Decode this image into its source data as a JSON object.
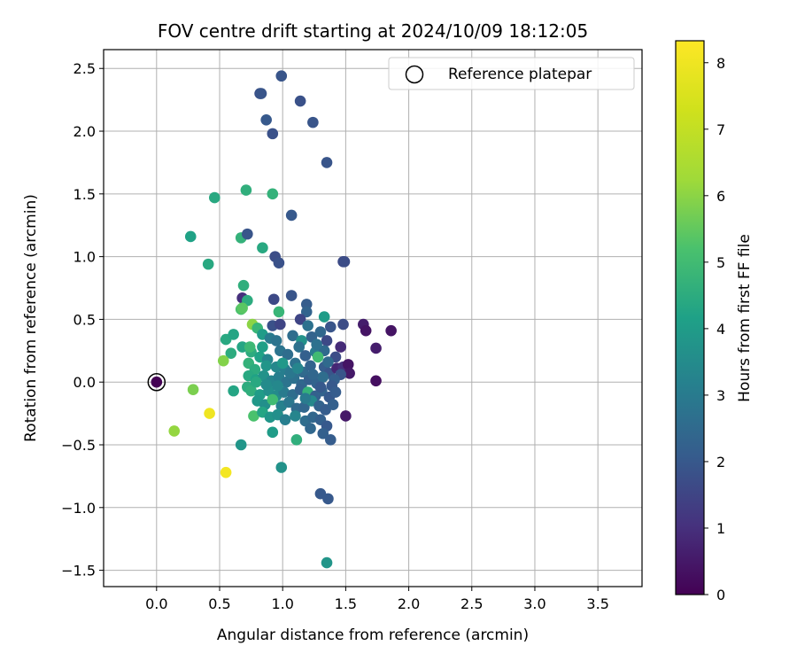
{
  "chart_data": {
    "type": "scatter",
    "title": "FOV centre drift starting at 2024/10/09 18:12:05",
    "xlabel": "Angular distance from reference (arcmin)",
    "ylabel": "Rotation from reference (arcmin)",
    "xlim": [
      -0.42,
      3.85
    ],
    "ylim": [
      -1.63,
      2.65
    ],
    "xticks": [
      0.0,
      0.5,
      1.0,
      1.5,
      2.0,
      2.5,
      3.0,
      3.5
    ],
    "xtick_labels": [
      "0.0",
      "0.5",
      "1.0",
      "1.5",
      "2.0",
      "2.5",
      "3.0",
      "3.5"
    ],
    "yticks": [
      -1.5,
      -1.0,
      -0.5,
      0.0,
      0.5,
      1.0,
      1.5,
      2.0,
      2.5
    ],
    "ytick_labels": [
      "−1.5",
      "−1.0",
      "−0.5",
      "0.0",
      "0.5",
      "1.0",
      "1.5",
      "2.0",
      "2.5"
    ],
    "grid": true,
    "legend": {
      "position": "top-right",
      "entries": [
        "Reference platepar"
      ]
    },
    "reference_point": {
      "x": 0.0,
      "y": 0.0,
      "c": 0.0
    },
    "colorbar": {
      "label": "Hours from first FF file",
      "colormap": "viridis",
      "range": [
        0,
        8.33
      ],
      "ticks": [
        0,
        1,
        2,
        3,
        4,
        5,
        6,
        7,
        8
      ],
      "tick_labels": [
        "0",
        "1",
        "2",
        "3",
        "4",
        "5",
        "6",
        "7",
        "8"
      ]
    },
    "points": [
      {
        "x": 0.99,
        "y": 2.44,
        "c": 1.9
      },
      {
        "x": 0.82,
        "y": 2.3,
        "c": 1.8
      },
      {
        "x": 0.83,
        "y": 2.3,
        "c": 1.9
      },
      {
        "x": 1.14,
        "y": 2.24,
        "c": 1.8
      },
      {
        "x": 0.87,
        "y": 2.09,
        "c": 2.0
      },
      {
        "x": 1.24,
        "y": 2.07,
        "c": 1.9
      },
      {
        "x": 0.92,
        "y": 1.98,
        "c": 1.8
      },
      {
        "x": 1.35,
        "y": 1.75,
        "c": 1.9
      },
      {
        "x": 0.46,
        "y": 1.47,
        "c": 4.4
      },
      {
        "x": 0.71,
        "y": 1.53,
        "c": 4.6
      },
      {
        "x": 0.92,
        "y": 1.5,
        "c": 4.7
      },
      {
        "x": 1.07,
        "y": 1.33,
        "c": 2.0
      },
      {
        "x": 0.27,
        "y": 1.16,
        "c": 4.2
      },
      {
        "x": 0.67,
        "y": 1.15,
        "c": 4.7
      },
      {
        "x": 0.72,
        "y": 1.18,
        "c": 1.9
      },
      {
        "x": 0.84,
        "y": 1.07,
        "c": 4.4
      },
      {
        "x": 0.94,
        "y": 1.0,
        "c": 1.7
      },
      {
        "x": 0.97,
        "y": 0.95,
        "c": 1.8
      },
      {
        "x": 1.48,
        "y": 0.96,
        "c": 1.6
      },
      {
        "x": 1.49,
        "y": 0.96,
        "c": 1.7
      },
      {
        "x": 0.41,
        "y": 0.94,
        "c": 4.4
      },
      {
        "x": 0.69,
        "y": 0.77,
        "c": 4.6
      },
      {
        "x": 0.68,
        "y": 0.67,
        "c": 1.0
      },
      {
        "x": 0.72,
        "y": 0.65,
        "c": 4.5
      },
      {
        "x": 0.93,
        "y": 0.66,
        "c": 1.6
      },
      {
        "x": 1.07,
        "y": 0.69,
        "c": 1.9
      },
      {
        "x": 1.19,
        "y": 0.62,
        "c": 2.1
      },
      {
        "x": 0.67,
        "y": 0.58,
        "c": 5.2
      },
      {
        "x": 0.68,
        "y": 0.59,
        "c": 5.4
      },
      {
        "x": 0.97,
        "y": 0.56,
        "c": 4.8
      },
      {
        "x": 1.19,
        "y": 0.56,
        "c": 2.3
      },
      {
        "x": 1.33,
        "y": 0.52,
        "c": 4.0
      },
      {
        "x": 1.64,
        "y": 0.46,
        "c": 0.6
      },
      {
        "x": 1.66,
        "y": 0.41,
        "c": 0.4
      },
      {
        "x": 1.86,
        "y": 0.41,
        "c": 0.4
      },
      {
        "x": 1.48,
        "y": 0.46,
        "c": 1.7
      },
      {
        "x": 1.74,
        "y": 0.27,
        "c": 0.6
      },
      {
        "x": 1.46,
        "y": 0.28,
        "c": 0.9
      },
      {
        "x": 0.76,
        "y": 0.46,
        "c": 6.0
      },
      {
        "x": 0.8,
        "y": 0.43,
        "c": 4.8
      },
      {
        "x": 0.92,
        "y": 0.45,
        "c": 1.8
      },
      {
        "x": 0.98,
        "y": 0.46,
        "c": 1.5
      },
      {
        "x": 1.14,
        "y": 0.5,
        "c": 1.5
      },
      {
        "x": 1.2,
        "y": 0.45,
        "c": 2.7
      },
      {
        "x": 1.38,
        "y": 0.44,
        "c": 1.9
      },
      {
        "x": 0.55,
        "y": 0.34,
        "c": 4.4
      },
      {
        "x": 0.61,
        "y": 0.38,
        "c": 4.3
      },
      {
        "x": 0.68,
        "y": 0.28,
        "c": 4.3
      },
      {
        "x": 0.84,
        "y": 0.38,
        "c": 4.0
      },
      {
        "x": 0.9,
        "y": 0.35,
        "c": 3.0
      },
      {
        "x": 0.95,
        "y": 0.33,
        "c": 2.8
      },
      {
        "x": 1.08,
        "y": 0.37,
        "c": 2.6
      },
      {
        "x": 1.15,
        "y": 0.33,
        "c": 3.7
      },
      {
        "x": 1.23,
        "y": 0.36,
        "c": 2.3
      },
      {
        "x": 1.3,
        "y": 0.4,
        "c": 2.4
      },
      {
        "x": 1.35,
        "y": 0.33,
        "c": 1.6
      },
      {
        "x": 0.59,
        "y": 0.23,
        "c": 4.5
      },
      {
        "x": 0.75,
        "y": 0.24,
        "c": 4.5
      },
      {
        "x": 0.82,
        "y": 0.2,
        "c": 4.2
      },
      {
        "x": 0.88,
        "y": 0.18,
        "c": 3.3
      },
      {
        "x": 0.98,
        "y": 0.25,
        "c": 2.8
      },
      {
        "x": 1.04,
        "y": 0.22,
        "c": 2.6
      },
      {
        "x": 1.13,
        "y": 0.28,
        "c": 2.7
      },
      {
        "x": 1.18,
        "y": 0.21,
        "c": 2.2
      },
      {
        "x": 1.26,
        "y": 0.24,
        "c": 3.0
      },
      {
        "x": 1.33,
        "y": 0.25,
        "c": 2.5
      },
      {
        "x": 1.42,
        "y": 0.2,
        "c": 1.7
      },
      {
        "x": 0.53,
        "y": 0.17,
        "c": 5.9
      },
      {
        "x": 0.73,
        "y": 0.15,
        "c": 4.7
      },
      {
        "x": 0.78,
        "y": 0.1,
        "c": 4.5
      },
      {
        "x": 0.87,
        "y": 0.13,
        "c": 3.8
      },
      {
        "x": 0.95,
        "y": 0.12,
        "c": 3.4
      },
      {
        "x": 1.02,
        "y": 0.1,
        "c": 3.1
      },
      {
        "x": 1.1,
        "y": 0.15,
        "c": 2.7
      },
      {
        "x": 1.16,
        "y": 0.08,
        "c": 2.5
      },
      {
        "x": 1.22,
        "y": 0.13,
        "c": 2.3
      },
      {
        "x": 1.28,
        "y": 0.2,
        "c": 5.0
      },
      {
        "x": 1.33,
        "y": 0.12,
        "c": 2.1
      },
      {
        "x": 1.37,
        "y": 0.07,
        "c": 1.9
      },
      {
        "x": 1.43,
        "y": 0.11,
        "c": 0.8
      },
      {
        "x": 1.48,
        "y": 0.12,
        "c": 1.0
      },
      {
        "x": 1.52,
        "y": 0.14,
        "c": 0.4
      },
      {
        "x": 1.53,
        "y": 0.07,
        "c": 0.5
      },
      {
        "x": 1.46,
        "y": 0.06,
        "c": 1.9
      },
      {
        "x": 1.41,
        "y": 0.02,
        "c": 2.2
      },
      {
        "x": 1.74,
        "y": 0.01,
        "c": 0.3
      },
      {
        "x": 0.73,
        "y": 0.05,
        "c": 4.4
      },
      {
        "x": 0.79,
        "y": 0.02,
        "c": 4.2
      },
      {
        "x": 0.85,
        "y": 0.05,
        "c": 3.7
      },
      {
        "x": 0.91,
        "y": 0.01,
        "c": 3.3
      },
      {
        "x": 0.97,
        "y": 0.04,
        "c": 3.1
      },
      {
        "x": 1.03,
        "y": 0.0,
        "c": 2.8
      },
      {
        "x": 1.09,
        "y": 0.03,
        "c": 2.7
      },
      {
        "x": 1.15,
        "y": -0.02,
        "c": 2.4
      },
      {
        "x": 1.21,
        "y": 0.02,
        "c": 2.2
      },
      {
        "x": 1.27,
        "y": -0.01,
        "c": 2.3
      },
      {
        "x": 1.32,
        "y": 0.04,
        "c": 2.6
      },
      {
        "x": 1.39,
        "y": -0.03,
        "c": 2.0
      },
      {
        "x": 0.61,
        "y": -0.07,
        "c": 4.3
      },
      {
        "x": 0.72,
        "y": -0.04,
        "c": 4.5
      },
      {
        "x": 0.75,
        "y": -0.07,
        "c": 4.6
      },
      {
        "x": 0.82,
        "y": -0.1,
        "c": 4.0
      },
      {
        "x": 0.89,
        "y": -0.07,
        "c": 3.6
      },
      {
        "x": 0.95,
        "y": -0.11,
        "c": 3.5
      },
      {
        "x": 1.01,
        "y": -0.08,
        "c": 3.0
      },
      {
        "x": 1.08,
        "y": -0.1,
        "c": 2.6
      },
      {
        "x": 1.14,
        "y": -0.06,
        "c": 2.3
      },
      {
        "x": 1.2,
        "y": -0.08,
        "c": 4.7
      },
      {
        "x": 1.26,
        "y": -0.11,
        "c": 2.2
      },
      {
        "x": 1.31,
        "y": -0.07,
        "c": 2.3
      },
      {
        "x": 1.37,
        "y": -0.12,
        "c": 2.0
      },
      {
        "x": 0.8,
        "y": -0.15,
        "c": 3.9
      },
      {
        "x": 0.86,
        "y": -0.18,
        "c": 3.6
      },
      {
        "x": 0.92,
        "y": -0.14,
        "c": 5.0
      },
      {
        "x": 0.99,
        "y": -0.19,
        "c": 3.2
      },
      {
        "x": 1.05,
        "y": -0.16,
        "c": 2.9
      },
      {
        "x": 1.11,
        "y": -0.21,
        "c": 2.5
      },
      {
        "x": 1.17,
        "y": -0.2,
        "c": 2.4
      },
      {
        "x": 1.23,
        "y": -0.15,
        "c": 3.4
      },
      {
        "x": 1.29,
        "y": -0.19,
        "c": 2.3
      },
      {
        "x": 1.34,
        "y": -0.22,
        "c": 2.1
      },
      {
        "x": 1.4,
        "y": -0.18,
        "c": 2.2
      },
      {
        "x": 0.77,
        "y": -0.27,
        "c": 5.2
      },
      {
        "x": 0.84,
        "y": -0.24,
        "c": 4.3
      },
      {
        "x": 0.9,
        "y": -0.28,
        "c": 3.8
      },
      {
        "x": 0.96,
        "y": -0.26,
        "c": 3.6
      },
      {
        "x": 1.02,
        "y": -0.3,
        "c": 3.1
      },
      {
        "x": 1.18,
        "y": -0.31,
        "c": 2.6
      },
      {
        "x": 1.24,
        "y": -0.28,
        "c": 2.4
      },
      {
        "x": 1.3,
        "y": -0.3,
        "c": 2.2
      },
      {
        "x": 1.35,
        "y": -0.35,
        "c": 2.0
      },
      {
        "x": 1.5,
        "y": -0.27,
        "c": 0.5
      },
      {
        "x": 0.29,
        "y": -0.06,
        "c": 5.8
      },
      {
        "x": 0.14,
        "y": -0.39,
        "c": 6.1
      },
      {
        "x": 0.42,
        "y": -0.25,
        "c": 8.0
      },
      {
        "x": 0.92,
        "y": -0.4,
        "c": 4.0
      },
      {
        "x": 1.22,
        "y": -0.37,
        "c": 2.4
      },
      {
        "x": 1.32,
        "y": -0.41,
        "c": 2.2
      },
      {
        "x": 1.38,
        "y": -0.46,
        "c": 2.1
      },
      {
        "x": 1.11,
        "y": -0.46,
        "c": 4.6
      },
      {
        "x": 0.67,
        "y": -0.5,
        "c": 3.8
      },
      {
        "x": 0.99,
        "y": -0.68,
        "c": 3.7
      },
      {
        "x": 0.55,
        "y": -0.72,
        "c": 8.1
      },
      {
        "x": 1.3,
        "y": -0.89,
        "c": 2.0
      },
      {
        "x": 1.36,
        "y": -0.93,
        "c": 2.0
      },
      {
        "x": 1.35,
        "y": -1.44,
        "c": 3.8
      },
      {
        "x": 0.79,
        "y": 0.0,
        "c": 4.4
      },
      {
        "x": 0.87,
        "y": -0.02,
        "c": 3.5
      },
      {
        "x": 1.06,
        "y": 0.07,
        "c": 2.9
      },
      {
        "x": 1.12,
        "y": 0.11,
        "c": 3.3
      },
      {
        "x": 1.24,
        "y": 0.06,
        "c": 2.4
      },
      {
        "x": 1.3,
        "y": -0.04,
        "c": 2.0
      },
      {
        "x": 1.36,
        "y": 0.16,
        "c": 2.5
      },
      {
        "x": 0.84,
        "y": 0.28,
        "c": 4.1
      },
      {
        "x": 1.0,
        "y": 0.15,
        "c": 3.9
      },
      {
        "x": 1.18,
        "y": -0.13,
        "c": 3.0
      },
      {
        "x": 1.42,
        "y": -0.08,
        "c": 2.1
      },
      {
        "x": 0.96,
        "y": -0.03,
        "c": 3.4
      },
      {
        "x": 1.27,
        "y": 0.3,
        "c": 2.7
      },
      {
        "x": 1.1,
        "y": -0.27,
        "c": 3.3
      },
      {
        "x": 0.74,
        "y": 0.28,
        "c": 4.9
      }
    ]
  }
}
